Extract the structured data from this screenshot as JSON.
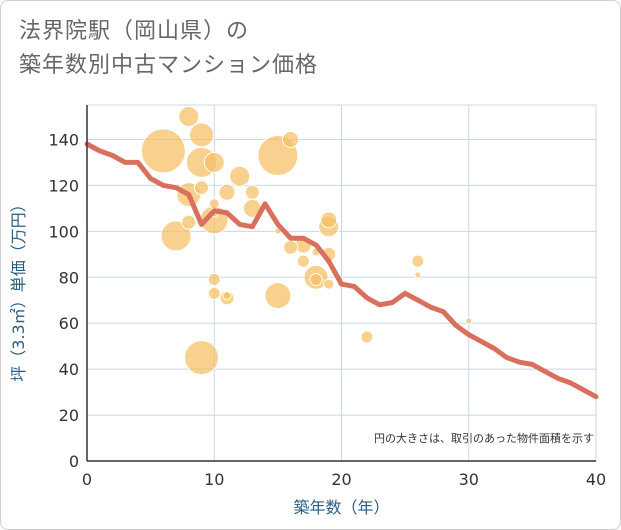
{
  "title": {
    "line1": "法界院駅（岡山県）の",
    "line2": "築年数別中古マンション価格"
  },
  "colors": {
    "bubble": "#f5be5f",
    "line": "#d9705e",
    "grid": "#c8d8e6",
    "axis_text": "#2a5d84"
  },
  "chart_data": {
    "type": "scatter",
    "title": "法界院駅（岡山県）の築年数別中古マンション価格",
    "xlabel": "築年数（年）",
    "ylabel": "坪（3.3㎡）単価（万円）",
    "xlim": [
      0,
      40
    ],
    "ylim": [
      0,
      155
    ],
    "x_ticks": [
      0,
      10,
      20,
      30,
      40
    ],
    "y_ticks": [
      0,
      20,
      40,
      60,
      80,
      100,
      120,
      140
    ],
    "grid": true,
    "note": "円の大きさは、取引のあった物件面積を示す",
    "bubbles": [
      {
        "x": 6,
        "y": 135,
        "size": 22
      },
      {
        "x": 15,
        "y": 133,
        "size": 20
      },
      {
        "x": 9,
        "y": 45,
        "size": 17
      },
      {
        "x": 9,
        "y": 130,
        "size": 15
      },
      {
        "x": 7,
        "y": 98,
        "size": 15
      },
      {
        "x": 10,
        "y": 105,
        "size": 14
      },
      {
        "x": 15,
        "y": 72,
        "size": 13
      },
      {
        "x": 8,
        "y": 116,
        "size": 12
      },
      {
        "x": 9,
        "y": 142,
        "size": 12
      },
      {
        "x": 18,
        "y": 80,
        "size": 12
      },
      {
        "x": 8,
        "y": 150,
        "size": 10
      },
      {
        "x": 12,
        "y": 124,
        "size": 10
      },
      {
        "x": 10,
        "y": 130,
        "size": 10
      },
      {
        "x": 13,
        "y": 110,
        "size": 9
      },
      {
        "x": 19,
        "y": 102,
        "size": 10
      },
      {
        "x": 19,
        "y": 105,
        "size": 8
      },
      {
        "x": 11,
        "y": 117,
        "size": 8
      },
      {
        "x": 17,
        "y": 94,
        "size": 8
      },
      {
        "x": 13,
        "y": 117,
        "size": 7
      },
      {
        "x": 16,
        "y": 140,
        "size": 8
      },
      {
        "x": 16,
        "y": 93,
        "size": 7
      },
      {
        "x": 19,
        "y": 90,
        "size": 7
      },
      {
        "x": 9,
        "y": 119,
        "size": 7
      },
      {
        "x": 8,
        "y": 104,
        "size": 7
      },
      {
        "x": 11,
        "y": 71,
        "size": 7
      },
      {
        "x": 18,
        "y": 79,
        "size": 6
      },
      {
        "x": 17,
        "y": 87,
        "size": 6
      },
      {
        "x": 10,
        "y": 79,
        "size": 6
      },
      {
        "x": 10,
        "y": 73,
        "size": 6
      },
      {
        "x": 22,
        "y": 54,
        "size": 6
      },
      {
        "x": 26,
        "y": 87,
        "size": 6
      },
      {
        "x": 10,
        "y": 112,
        "size": 5
      },
      {
        "x": 10,
        "y": 108,
        "size": 4
      },
      {
        "x": 19,
        "y": 77,
        "size": 5
      },
      {
        "x": 18,
        "y": 91,
        "size": 4
      },
      {
        "x": 11,
        "y": 72,
        "size": 4
      },
      {
        "x": 15,
        "y": 100,
        "size": 3
      },
      {
        "x": 26,
        "y": 81,
        "size": 3
      },
      {
        "x": 30,
        "y": 61,
        "size": 3
      }
    ],
    "trend_line": {
      "x": [
        0,
        1,
        2,
        3,
        4,
        5,
        6,
        7,
        8,
        9,
        10,
        11,
        12,
        13,
        14,
        15,
        16,
        17,
        18,
        19,
        20,
        21,
        22,
        23,
        24,
        25,
        26,
        27,
        28,
        29,
        30,
        31,
        32,
        33,
        34,
        35,
        36,
        37,
        38,
        39,
        40
      ],
      "y": [
        138,
        135,
        133,
        130,
        130,
        123,
        120,
        119,
        116,
        103,
        109,
        108,
        103,
        102,
        112,
        103,
        97,
        97,
        94,
        87,
        77,
        76,
        71,
        68,
        69,
        73,
        70,
        67,
        65,
        59,
        55,
        52,
        49,
        45,
        43,
        42,
        39,
        36,
        34,
        31,
        28
      ]
    }
  }
}
